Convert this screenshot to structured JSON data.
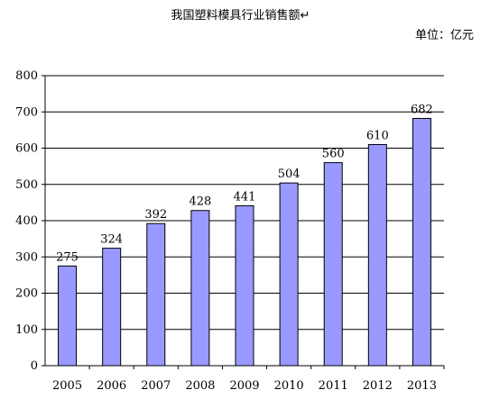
{
  "chart_data": {
    "type": "bar",
    "title": "我国塑料模具行业销售额↵",
    "unit_label": "单位：亿元",
    "categories": [
      "2005",
      "2006",
      "2007",
      "2008",
      "2009",
      "2010",
      "2011",
      "2012",
      "2013"
    ],
    "values": [
      275,
      324,
      392,
      428,
      441,
      504,
      560,
      610,
      682
    ],
    "data_labels": [
      "275",
      "324",
      "392",
      "428",
      "441",
      "504",
      "560",
      "610",
      "682"
    ],
    "ylim": [
      0,
      800
    ],
    "yticks": [
      "0",
      "100",
      "200",
      "300",
      "400",
      "500",
      "600",
      "700",
      "800"
    ],
    "grid": true,
    "bar_color": "#9999ff",
    "bar_edge_color": "#000000"
  }
}
